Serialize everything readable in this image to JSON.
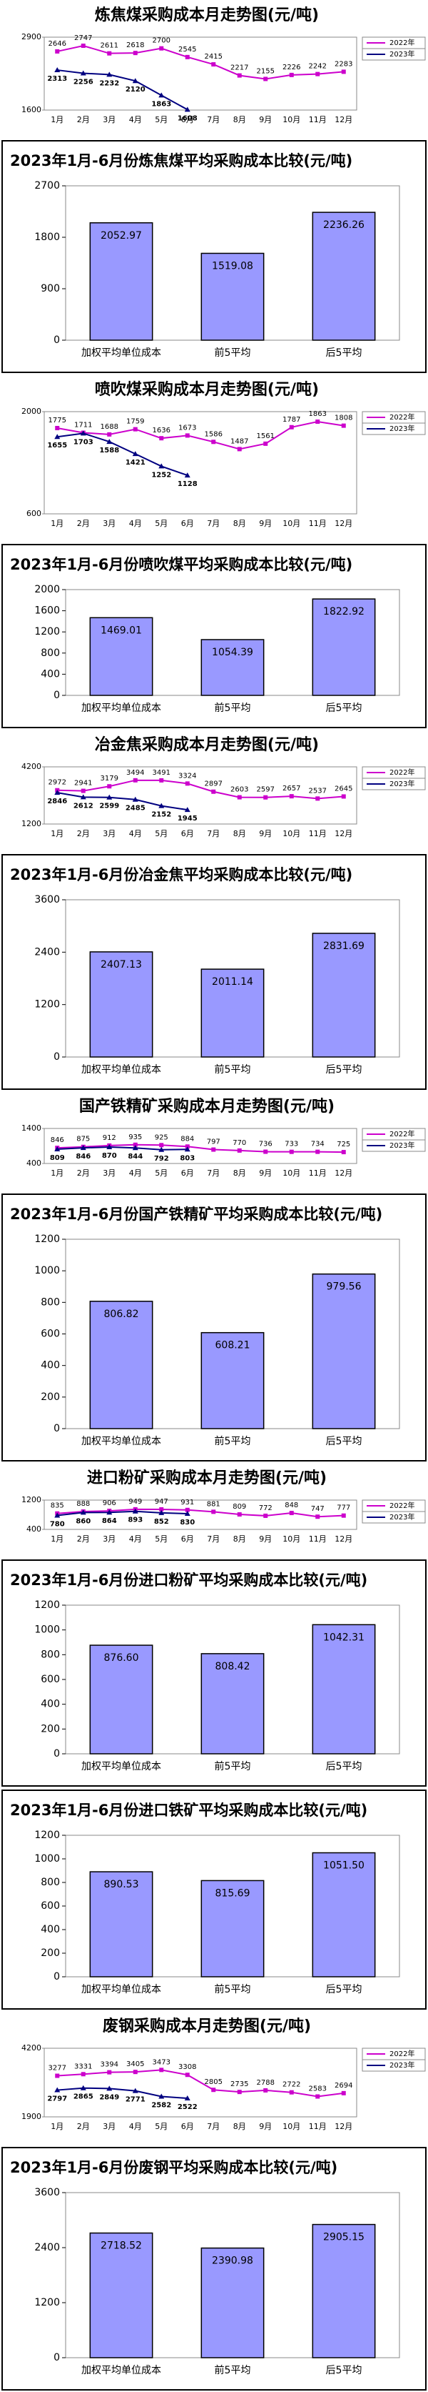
{
  "chart_data": [
    {
      "type": "line",
      "title": "炼焦煤采购成本月走势图(元/吨)",
      "categories": [
        "1月",
        "2月",
        "3月",
        "4月",
        "5月",
        "6月",
        "7月",
        "8月",
        "9月",
        "10月",
        "11月",
        "12月"
      ],
      "ylim": [
        1600,
        2900
      ],
      "yticks": [
        1600,
        2900
      ],
      "series": [
        {
          "name": "2022年",
          "color": "#cc00cc",
          "values": [
            2646,
            2747,
            2611,
            2618,
            2700,
            2545,
            2415,
            2217,
            2155,
            2226,
            2242,
            2283
          ]
        },
        {
          "name": "2023年",
          "color": "#000080",
          "values": [
            2313,
            2256,
            2232,
            2120,
            1863,
            1608,
            null,
            null,
            null,
            null,
            null,
            null
          ]
        }
      ]
    },
    {
      "type": "bar",
      "title": "2023年1月-6月份炼焦煤平均采购成本比较(元/吨)",
      "categories": [
        "加权平均单位成本",
        "前5平均",
        "后5平均"
      ],
      "values": [
        2052.97,
        1519.08,
        2236.26
      ],
      "value_labels": [
        "2052.97",
        "1519.08",
        "2236.26"
      ],
      "color": "#9999ff",
      "ylim": [
        0,
        2700
      ],
      "yticks": [
        0,
        900,
        1800,
        2700
      ]
    },
    {
      "type": "line",
      "title": "喷吹煤采购成本月走势图(元/吨)",
      "categories": [
        "1月",
        "2月",
        "3月",
        "4月",
        "5月",
        "6月",
        "7月",
        "8月",
        "9月",
        "10月",
        "11月",
        "12月"
      ],
      "ylim": [
        600,
        2000
      ],
      "yticks": [
        600,
        2000
      ],
      "series": [
        {
          "name": "2022年",
          "color": "#cc00cc",
          "values": [
            1775,
            1711,
            1688,
            1759,
            1636,
            1673,
            1586,
            1487,
            1561,
            1787,
            1863,
            1808
          ]
        },
        {
          "name": "2023年",
          "color": "#000080",
          "values": [
            1655,
            1703,
            1588,
            1421,
            1252,
            1128,
            null,
            null,
            null,
            null,
            null,
            null
          ]
        }
      ]
    },
    {
      "type": "bar",
      "title": "2023年1月-6月份喷吹煤平均采购成本比较(元/吨)",
      "categories": [
        "加权平均单位成本",
        "前5平均",
        "后5平均"
      ],
      "values": [
        1469.01,
        1054.39,
        1822.92
      ],
      "value_labels": [
        "1469.01",
        "1054.39",
        "1822.92"
      ],
      "color": "#9999ff",
      "ylim": [
        0,
        2000
      ],
      "yticks": [
        0,
        400,
        800,
        1200,
        1600,
        2000
      ]
    },
    {
      "type": "line",
      "title": "冶金焦采购成本月走势图(元/吨)",
      "categories": [
        "1月",
        "2月",
        "3月",
        "4月",
        "5月",
        "6月",
        "7月",
        "8月",
        "9月",
        "10月",
        "11月",
        "12月"
      ],
      "ylim": [
        1200,
        4200
      ],
      "yticks": [
        1200,
        4200
      ],
      "series": [
        {
          "name": "2022年",
          "color": "#cc00cc",
          "values": [
            2972,
            2941,
            3179,
            3494,
            3491,
            3324,
            2897,
            2603,
            2597,
            2657,
            2537,
            2645
          ]
        },
        {
          "name": "2023年",
          "color": "#000080",
          "values": [
            2846,
            2612,
            2599,
            2485,
            2152,
            1945,
            null,
            null,
            null,
            null,
            null,
            null
          ]
        }
      ]
    },
    {
      "type": "bar",
      "title": "2023年1月-6月份冶金焦平均采购成本比较(元/吨)",
      "categories": [
        "加权平均单位成本",
        "前5平均",
        "后5平均"
      ],
      "values": [
        2407.13,
        2011.14,
        2831.69
      ],
      "value_labels": [
        "2407.13",
        "2011.14",
        "2831.69"
      ],
      "color": "#9999ff",
      "ylim": [
        0,
        3600
      ],
      "yticks": [
        0,
        1200,
        2400,
        3600
      ]
    },
    {
      "type": "line",
      "title": "国产铁精矿采购成本月走势图(元/吨)",
      "categories": [
        "1月",
        "2月",
        "3月",
        "4月",
        "5月",
        "6月",
        "7月",
        "8月",
        "9月",
        "10月",
        "11月",
        "12月"
      ],
      "ylim": [
        400,
        1400
      ],
      "yticks": [
        400,
        1400
      ],
      "series": [
        {
          "name": "2022年",
          "color": "#cc00cc",
          "values": [
            846,
            875,
            912,
            935,
            925,
            884,
            797,
            770,
            736,
            733,
            734,
            725
          ]
        },
        {
          "name": "2023年",
          "color": "#000080",
          "values": [
            809,
            846,
            870,
            844,
            792,
            803,
            null,
            null,
            null,
            null,
            null,
            null
          ]
        }
      ]
    },
    {
      "type": "bar",
      "title": "2023年1月-6月份国产铁精矿平均采购成本比较(元/吨)",
      "categories": [
        "加权平均单位成本",
        "前5平均",
        "后5平均"
      ],
      "values": [
        806.82,
        608.21,
        979.56
      ],
      "value_labels": [
        "806.82",
        "608.21",
        "979.56"
      ],
      "color": "#9999ff",
      "ylim": [
        0,
        1200
      ],
      "yticks": [
        0,
        200,
        400,
        600,
        800,
        1000,
        1200
      ]
    },
    {
      "type": "line",
      "title": "进口粉矿采购成本月走势图(元/吨)",
      "categories": [
        "1月",
        "2月",
        "3月",
        "4月",
        "5月",
        "6月",
        "7月",
        "8月",
        "9月",
        "10月",
        "11月",
        "12月"
      ],
      "ylim": [
        400,
        1200
      ],
      "yticks": [
        400,
        1200
      ],
      "series": [
        {
          "name": "2022年",
          "color": "#cc00cc",
          "values": [
            835,
            888,
            906,
            949,
            947,
            931,
            881,
            809,
            772,
            848,
            747,
            777
          ]
        },
        {
          "name": "2023年",
          "color": "#000080",
          "values": [
            780,
            860,
            864,
            893,
            852,
            830,
            null,
            null,
            null,
            null,
            null,
            null
          ]
        }
      ]
    },
    {
      "type": "bar",
      "title": "2023年1月-6月份进口粉矿平均采购成本比较(元/吨)",
      "categories": [
        "加权平均单位成本",
        "前5平均",
        "后5平均"
      ],
      "values": [
        876.6,
        808.42,
        1042.31
      ],
      "value_labels": [
        "876.60",
        "808.42",
        "1042.31"
      ],
      "color": "#9999ff",
      "ylim": [
        0,
        1200
      ],
      "yticks": [
        0,
        200,
        400,
        600,
        800,
        1000,
        1200
      ]
    },
    {
      "type": "bar",
      "title": "2023年1月-6月份进口铁矿平均采购成本比较(元/吨)",
      "categories": [
        "加权平均单位成本",
        "前5平均",
        "后5平均"
      ],
      "values": [
        890.53,
        815.69,
        1051.5
      ],
      "value_labels": [
        "890.53",
        "815.69",
        "1051.50"
      ],
      "color": "#9999ff",
      "ylim": [
        0,
        1200
      ],
      "yticks": [
        0,
        200,
        400,
        600,
        800,
        1000,
        1200
      ]
    },
    {
      "type": "line",
      "title": "废钢采购成本月走势图(元/吨)",
      "categories": [
        "1月",
        "2月",
        "3月",
        "4月",
        "5月",
        "6月",
        "7月",
        "8月",
        "9月",
        "10月",
        "11月",
        "12月"
      ],
      "ylim": [
        1900,
        4200
      ],
      "yticks": [
        1900,
        4200
      ],
      "series": [
        {
          "name": "2022年",
          "color": "#cc00cc",
          "values": [
            3277,
            3331,
            3394,
            3405,
            3473,
            3308,
            2805,
            2735,
            2788,
            2722,
            2583,
            2694
          ]
        },
        {
          "name": "2023年",
          "color": "#000080",
          "values": [
            2797,
            2865,
            2849,
            2771,
            2582,
            2522,
            null,
            null,
            null,
            null,
            null,
            null
          ]
        }
      ]
    },
    {
      "type": "bar",
      "title": "2023年1月-6月份废钢平均采购成本比较(元/吨)",
      "categories": [
        "加权平均单位成本",
        "前5平均",
        "后5平均"
      ],
      "values": [
        2718.52,
        2390.98,
        2905.15
      ],
      "value_labels": [
        "2718.52",
        "2390.98",
        "2905.15"
      ],
      "color": "#9999ff",
      "ylim": [
        0,
        3600
      ],
      "yticks": [
        0,
        1200,
        2400,
        3600
      ]
    }
  ]
}
